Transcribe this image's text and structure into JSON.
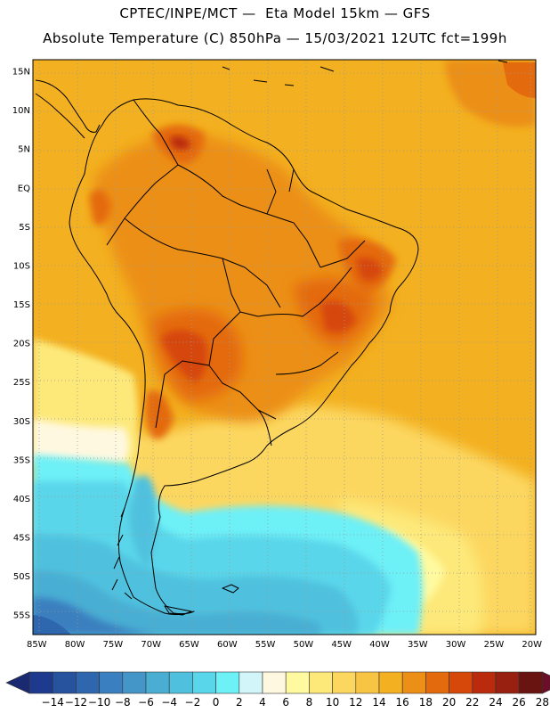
{
  "header": {
    "line1": "CPTEC/INPE/MCT —  Eta Model 15km — GFS",
    "line2": "Absolute Temperature (C) 850hPa — 15/03/2021 12UTC fct=199h"
  },
  "map": {
    "latitude_labels": [
      "15N",
      "10N",
      "5N",
      "EQ",
      "5S",
      "10S",
      "15S",
      "20S",
      "25S",
      "30S",
      "35S",
      "40S",
      "45S",
      "50S",
      "55S"
    ],
    "longitude_labels": [
      "85W",
      "80W",
      "75W",
      "70W",
      "65W",
      "60W",
      "55W",
      "50W",
      "45W",
      "40W",
      "35W",
      "30W",
      "25W",
      "20W"
    ],
    "lon_range": [
      -85.5,
      -19.5
    ],
    "lat_range": [
      -57.5,
      16.5
    ]
  },
  "colorbar": {
    "labels": [
      "-14",
      "-12",
      "-10",
      "-8",
      "-6",
      "-4",
      "-2",
      "0",
      "2",
      "4",
      "6",
      "8",
      "10",
      "12",
      "14",
      "16",
      "18",
      "20",
      "22",
      "24",
      "26",
      "28"
    ],
    "colors": [
      "#1d3a8f",
      "#26529e",
      "#2e67ad",
      "#3a7fbf",
      "#4596c8",
      "#4aaed3",
      "#4fc1de",
      "#5ad6ea",
      "#6ef0f7",
      "#d2f5fa",
      "#fff8e0",
      "#fffaa0",
      "#fde97a",
      "#fcd760",
      "#f8c444",
      "#f3b020",
      "#ec8f16",
      "#e46a0e",
      "#d6470a",
      "#ba2a0c",
      "#972010",
      "#6a1412"
    ],
    "left_arrow_color": "#1b2a70",
    "right_arrow_color": "#6a0f2a"
  }
}
